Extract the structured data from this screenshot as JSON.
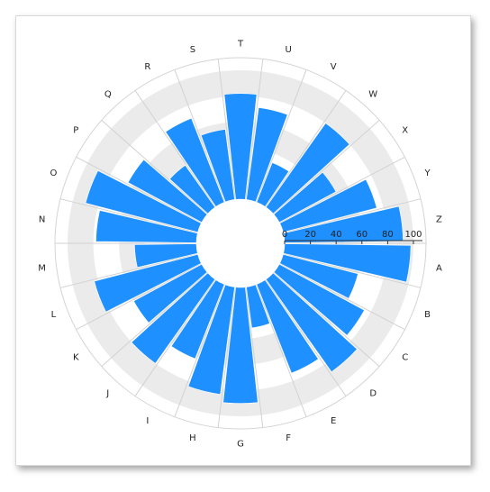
{
  "chart_data": {
    "type": "bar",
    "subtype": "polar-radial-bar",
    "title": "",
    "categories": [
      "A",
      "B",
      "C",
      "D",
      "E",
      "F",
      "G",
      "H",
      "I",
      "J",
      "K",
      "L",
      "M",
      "N",
      "O",
      "P",
      "Q",
      "R",
      "S",
      "T",
      "U",
      "V",
      "W",
      "X",
      "Y",
      "Z"
    ],
    "values": [
      98,
      60,
      75,
      88,
      74,
      32,
      90,
      84,
      62,
      80,
      60,
      83,
      48,
      78,
      90,
      65,
      40,
      70,
      55,
      82,
      72,
      33,
      80,
      50,
      75,
      92
    ],
    "rlim": [
      0,
      100
    ],
    "r_ticks": [
      0,
      20,
      40,
      60,
      80,
      100
    ],
    "r_tick_labels": [
      "0",
      "20",
      "40",
      "60",
      "80",
      "100"
    ],
    "bar_color": "#1e90ff",
    "band_color": "#ebebeb",
    "alternating_bands": true,
    "grid": true,
    "legend": "none"
  }
}
